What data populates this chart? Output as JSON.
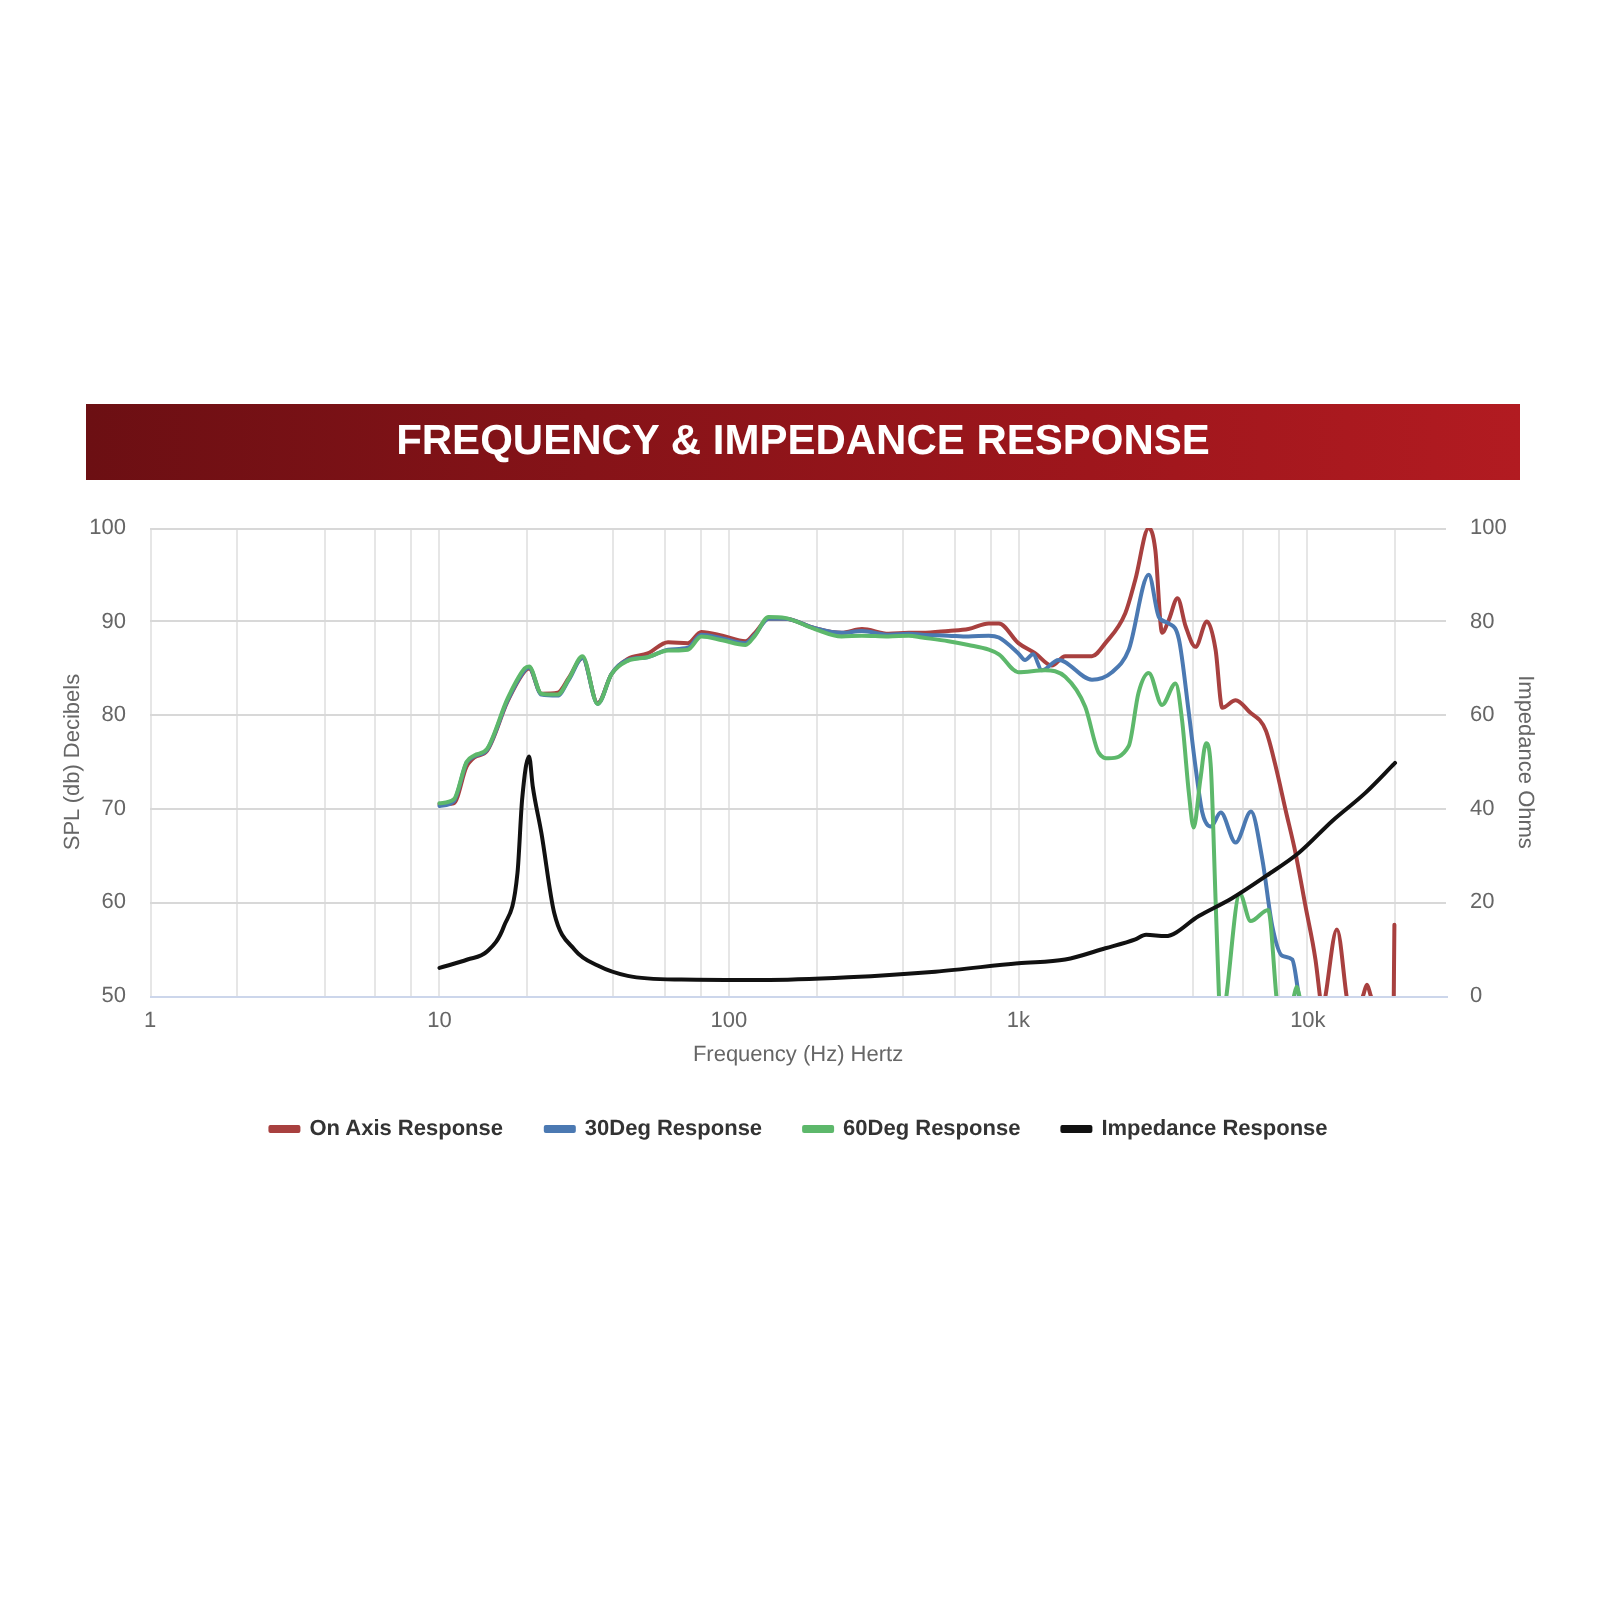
{
  "chart_data": {
    "type": "line",
    "title": "FREQUENCY & IMPEDANCE RESPONSE",
    "xlabel": "Frequency (Hz) Hertz",
    "ylabel": "SPL (db) Decibels",
    "y2label": "Impedance Ohms",
    "log": "x",
    "grid": true,
    "legend": "bottom",
    "marker": "none",
    "xlim": [
      1,
      30000
    ],
    "xticks": [
      1,
      {
        "value": 2,
        "label": null
      },
      {
        "value": 4,
        "label": null
      },
      {
        "value": 6,
        "label": null
      },
      {
        "value": 8,
        "label": null
      },
      10,
      {
        "value": 20,
        "label": null
      },
      {
        "value": 40,
        "label": null
      },
      {
        "value": 60,
        "label": null
      },
      {
        "value": 80,
        "label": null
      },
      100,
      {
        "value": 200,
        "label": null
      },
      {
        "value": 400,
        "label": null
      },
      {
        "value": 600,
        "label": null
      },
      {
        "value": 800,
        "label": null
      },
      {
        "value": 1000,
        "label": "1k"
      },
      {
        "value": 2000,
        "label": null
      },
      {
        "value": 4000,
        "label": null
      },
      {
        "value": 6000,
        "label": null
      },
      {
        "value": 8000,
        "label": null
      },
      {
        "value": 10000,
        "label": "10k"
      },
      {
        "value": 20000,
        "label": null
      }
    ],
    "ylim": [
      50,
      100
    ],
    "yticks": [
      50,
      60,
      70,
      80,
      90,
      100
    ],
    "y2lim": [
      0,
      100
    ],
    "y2ticks": [
      0,
      20,
      40,
      60,
      80,
      100
    ],
    "series": [
      {
        "name": "On Axis Response",
        "color": "#a8403f",
        "x": [
          10,
          11.2,
          12.4,
          13.2,
          14.6,
          17.2,
          19.7,
          20.4,
          22.5,
          25.6,
          28,
          31.2,
          35.2,
          39.3,
          44.7,
          52.4,
          61.6,
          72.1,
          80.3,
          94.9,
          114,
          123,
          137,
          156,
          198,
          245,
          288,
          356,
          418,
          465,
          573,
          672,
          790,
          856,
          1000,
          1144,
          1304,
          1451,
          1795,
          1997,
          2340,
          2535,
          2820,
          2970,
          3136,
          3309,
          3546,
          3781,
          4090,
          4480,
          4798,
          5060,
          5630,
          6263,
          7150,
          7745,
          8370,
          9060,
          9810,
          10620,
          11000,
          11300,
          11500,
          12600,
          13600,
          14800,
          15500,
          16000,
          16500,
          18500,
          19800,
          19900
        ],
        "values": [
          70.5,
          70.6,
          74.5,
          75.5,
          76.2,
          81.5,
          84.7,
          85.0,
          82.3,
          82.4,
          84.0,
          86.1,
          81.3,
          84.4,
          86.0,
          86.6,
          87.8,
          87.7,
          88.9,
          88.5,
          87.9,
          88.8,
          90.3,
          90.3,
          89.3,
          88.8,
          89.2,
          88.7,
          88.8,
          88.8,
          89.0,
          89.2,
          89.8,
          89.8,
          87.7,
          86.6,
          85.3,
          86.3,
          86.3,
          87.7,
          90.9,
          94.5,
          100,
          97.7,
          88.8,
          90.2,
          92.5,
          89.5,
          87.3,
          90.0,
          87.0,
          80.8,
          81.6,
          80.4,
          78.4,
          74.5,
          69.9,
          65.3,
          59.6,
          53.9,
          50,
          null,
          50,
          57.1,
          50,
          null,
          50,
          51.2,
          50,
          null,
          50,
          57.6
        ]
      },
      {
        "name": "30Deg Response",
        "color": "#4b79b2",
        "x": [
          10,
          11.2,
          12.4,
          13.2,
          14.6,
          17.2,
          19.7,
          20.4,
          22.5,
          25.6,
          28,
          31.2,
          35.2,
          39.3,
          44.7,
          52.4,
          61.6,
          72.1,
          80.3,
          94.9,
          114,
          123,
          137,
          156,
          198,
          245,
          288,
          356,
          418,
          465,
          573,
          672,
          790,
          856,
          1000,
          1054,
          1124,
          1205,
          1376,
          1795,
          2105,
          2405,
          2820,
          3055,
          3309,
          3585,
          3880,
          4090,
          4318,
          4620,
          5000,
          5630,
          6360,
          6960,
          7530,
          8150,
          8830,
          9310
        ],
        "values": [
          70.3,
          70.8,
          74.9,
          75.6,
          76.3,
          81.6,
          84.8,
          85.1,
          82.2,
          82.1,
          83.8,
          86.1,
          81.2,
          84.4,
          85.9,
          86.2,
          87.0,
          87.2,
          88.6,
          88.2,
          87.7,
          88.6,
          90.3,
          90.3,
          89.3,
          88.8,
          89.0,
          88.6,
          88.7,
          88.6,
          88.5,
          88.4,
          88.5,
          88.3,
          86.6,
          85.9,
          86.5,
          84.8,
          85.9,
          83.8,
          84.6,
          87.0,
          95.0,
          90.5,
          89.8,
          88.1,
          80.2,
          74.5,
          69.6,
          68.1,
          69.6,
          66.4,
          69.7,
          64.6,
          57.5,
          54.3,
          53.9,
          50
        ]
      },
      {
        "name": "60Deg Response",
        "color": "#5db86b",
        "x": [
          10,
          11.2,
          12.4,
          13.2,
          14.6,
          17.2,
          19.7,
          20.4,
          22.5,
          25.6,
          28,
          31.2,
          35.2,
          39.3,
          44.7,
          52.4,
          61.6,
          72.1,
          80.3,
          94.9,
          114,
          123,
          137,
          156,
          198,
          245,
          288,
          356,
          418,
          465,
          573,
          672,
          790,
          856,
          1000,
          1237,
          1451,
          1701,
          1893,
          2050,
          2405,
          2600,
          2820,
          3136,
          3490,
          3675,
          3880,
          4030,
          4250,
          4450,
          4620,
          4798,
          4930,
          5050,
          5230,
          5820,
          6340,
          7290,
          7780,
          8400,
          8950,
          9150,
          9350
        ],
        "values": [
          70.6,
          71.0,
          75.0,
          75.7,
          76.4,
          81.8,
          85.0,
          85.2,
          82.3,
          82.2,
          83.9,
          86.3,
          81.2,
          84.4,
          85.8,
          86.2,
          86.9,
          87.0,
          88.4,
          88.0,
          87.5,
          88.5,
          90.5,
          90.4,
          89.2,
          88.4,
          88.5,
          88.4,
          88.5,
          88.3,
          87.9,
          87.5,
          87.0,
          86.5,
          84.6,
          84.8,
          84.1,
          80.9,
          76.0,
          75.4,
          76.7,
          82.4,
          84.5,
          81.1,
          83.4,
          79.5,
          71.7,
          68.0,
          73.1,
          77.0,
          74.5,
          60.3,
          50,
          null,
          50,
          60.9,
          58.0,
          59.2,
          50,
          null,
          50,
          51.0,
          50
        ]
      },
      {
        "name": "Impedance Response",
        "color": "#111111",
        "axis": "y2",
        "x": [
          10,
          12.5,
          14.6,
          16.7,
          18.6,
          19.3,
          20.4,
          21.0,
          22.5,
          24.9,
          29.3,
          35.2,
          44.7,
          68.5,
          129,
          258,
          516,
          1000,
          1451,
          1997,
          2535,
          2760,
          3220,
          4200,
          5470,
          7150,
          9310,
          12140,
          15800,
          20000
        ],
        "values": [
          6.0,
          7.8,
          9.5,
          14.9,
          26.3,
          42.0,
          51.2,
          44.8,
          34.8,
          17.8,
          9.9,
          6.5,
          4.3,
          3.5,
          3.4,
          4.0,
          5.2,
          7.0,
          7.8,
          10.2,
          12.1,
          13.1,
          12.8,
          17.1,
          20.9,
          25.6,
          30.6,
          37.4,
          43.4,
          49.8
        ]
      }
    ]
  }
}
